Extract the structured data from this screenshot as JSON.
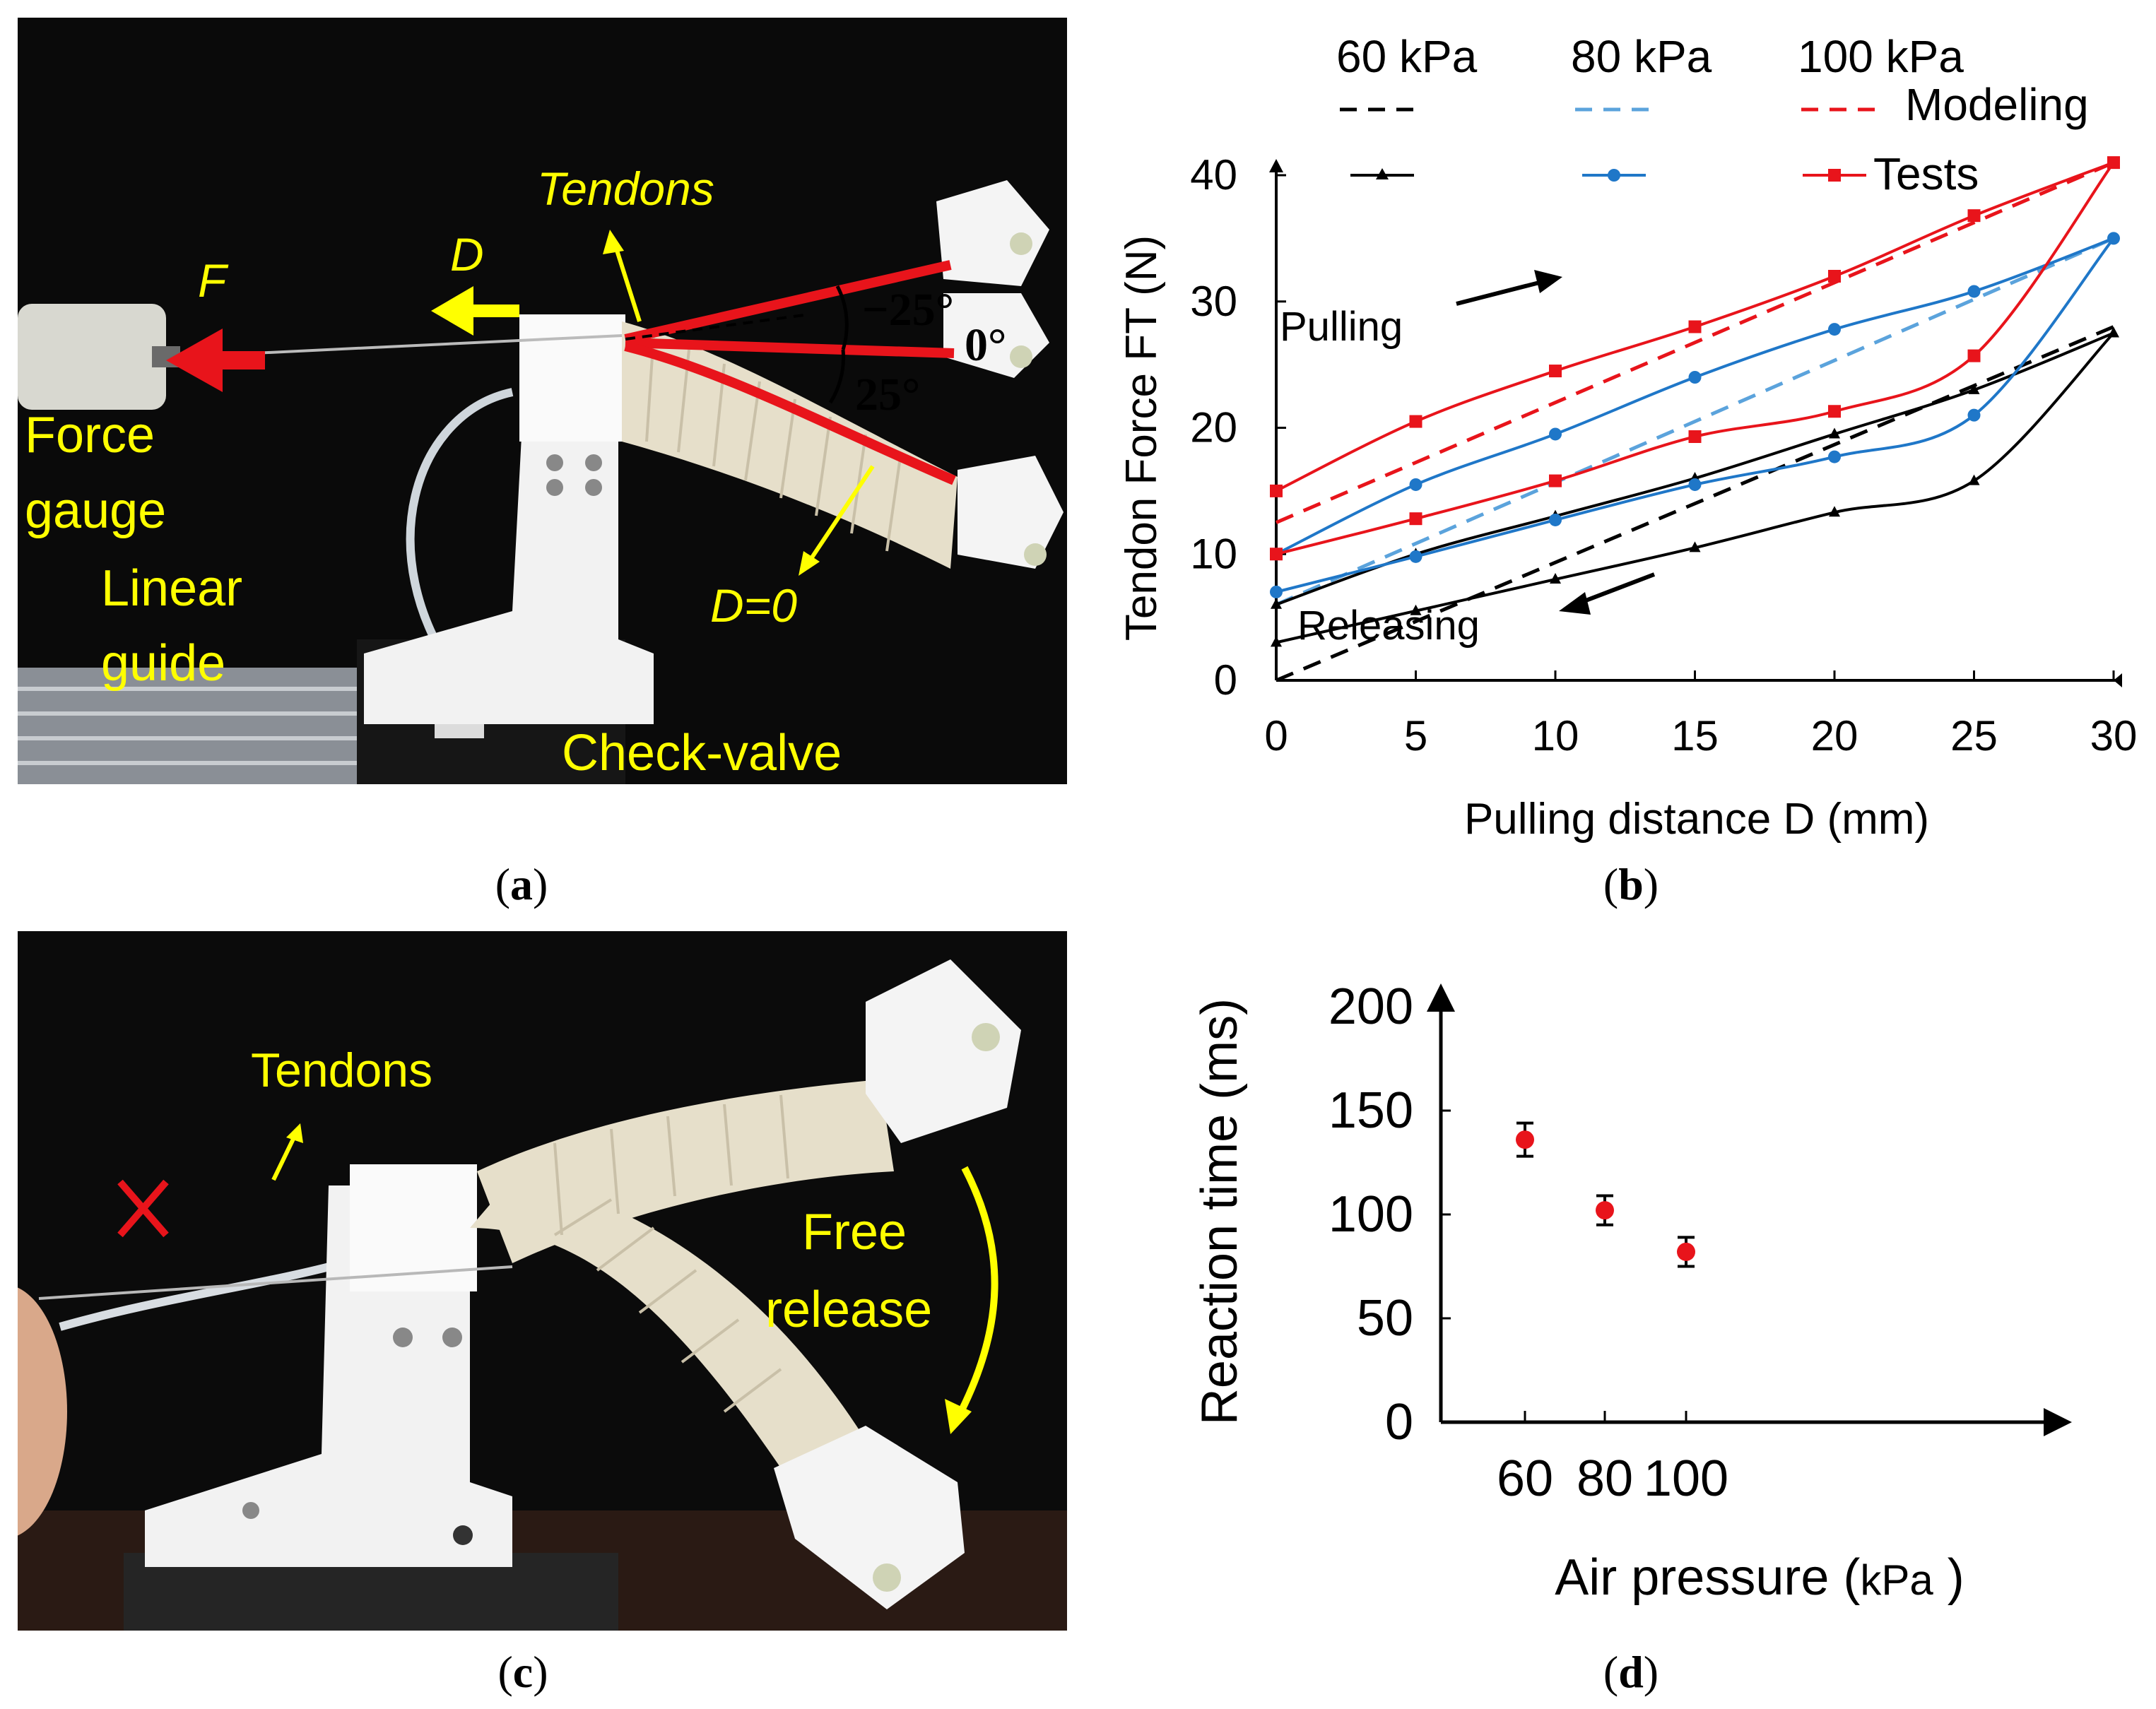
{
  "panels": {
    "a": {
      "label": "a",
      "annotations": {
        "force": "F",
        "distance": "D",
        "tendons": "Tendons",
        "angle_neg": "−25°",
        "angle_zero": "0°",
        "angle_pos": "25°",
        "force_gauge_1": "Force",
        "force_gauge_2": "gauge",
        "linear_guide_1": "Linear",
        "linear_guide_2": "guide",
        "d_zero": "D=0",
        "check_valve": "Check-valve"
      }
    },
    "b": {
      "label": "b"
    },
    "c": {
      "label": "c",
      "annotations": {
        "tendons": "Tendons",
        "free_release_1": "Free",
        "free_release_2": "release"
      }
    },
    "d": {
      "label": "d"
    }
  },
  "colors": {
    "black_series": "#000000",
    "blue_series": "#1f77c8",
    "blue_dash": "#5ba3dc",
    "red_series": "#e8141b",
    "annotation_yellow": "#ffff00",
    "photo_bg": "#0a0a0a"
  },
  "chart_data": [
    {
      "type": "line",
      "panel": "b",
      "legend": {
        "pressures": [
          "60 kPa",
          "80 kPa",
          "100 kPa"
        ],
        "modeling": "Modeling",
        "tests": "Tests"
      },
      "annotations": {
        "pulling": "Pulling",
        "releasing": "Releasing"
      },
      "xlabel": "Pulling distance D (mm)",
      "ylabel": "Tendon Force FT (N)",
      "xlim": [
        0,
        30
      ],
      "ylim": [
        0,
        40
      ],
      "x_ticks": [
        "0",
        "5",
        "10",
        "15",
        "20",
        "25",
        "30"
      ],
      "y_ticks": [
        "0",
        "10",
        "20",
        "30",
        "40"
      ],
      "x": [
        0,
        5,
        10,
        15,
        20,
        25,
        30
      ],
      "series": [
        {
          "name": "60 kPa",
          "kind": "tests",
          "color": "#000000",
          "marker": "triangle",
          "pulling": [
            6,
            10,
            13,
            16,
            19.5,
            23,
            27.5
          ],
          "releasing": [
            3,
            5.5,
            8,
            10.5,
            13.3,
            15.8,
            27.5
          ]
        },
        {
          "name": "80 kPa",
          "kind": "tests",
          "color": "#1f77c8",
          "marker": "circle",
          "pulling": [
            10,
            15.5,
            19.5,
            24,
            27.8,
            30.8,
            35
          ],
          "releasing": [
            7,
            9.8,
            12.7,
            15.5,
            17.7,
            21,
            35
          ]
        },
        {
          "name": "100 kPa",
          "kind": "tests",
          "color": "#e8141b",
          "marker": "square",
          "pulling": [
            15,
            20.5,
            24.5,
            28,
            32,
            36.8,
            41
          ],
          "releasing": [
            10,
            12.8,
            15.8,
            19.3,
            21.3,
            25.7,
            41
          ]
        },
        {
          "name": "60 kPa",
          "kind": "modeling",
          "color": "#000000",
          "dashed": true,
          "x": [
            0,
            30
          ],
          "values": [
            0,
            28
          ]
        },
        {
          "name": "80 kPa",
          "kind": "modeling",
          "color": "#5ba3dc",
          "dashed": true,
          "x": [
            0,
            30
          ],
          "values": [
            6,
            35
          ]
        },
        {
          "name": "100 kPa",
          "kind": "modeling",
          "color": "#e8141b",
          "dashed": true,
          "x": [
            0,
            30
          ],
          "values": [
            12.5,
            41
          ]
        }
      ]
    },
    {
      "type": "scatter",
      "panel": "d",
      "xlabel_main": "Air pressure",
      "xlabel_unit": "kPa",
      "ylabel": "Reaction time (ms)",
      "categories": [
        "60",
        "80",
        "100"
      ],
      "y_ticks": [
        "0",
        "50",
        "100",
        "150",
        "200"
      ],
      "ylim": [
        0,
        200
      ],
      "values": [
        136,
        102,
        82
      ],
      "errors": [
        8,
        7,
        7
      ],
      "marker_color": "#e8141b"
    }
  ]
}
